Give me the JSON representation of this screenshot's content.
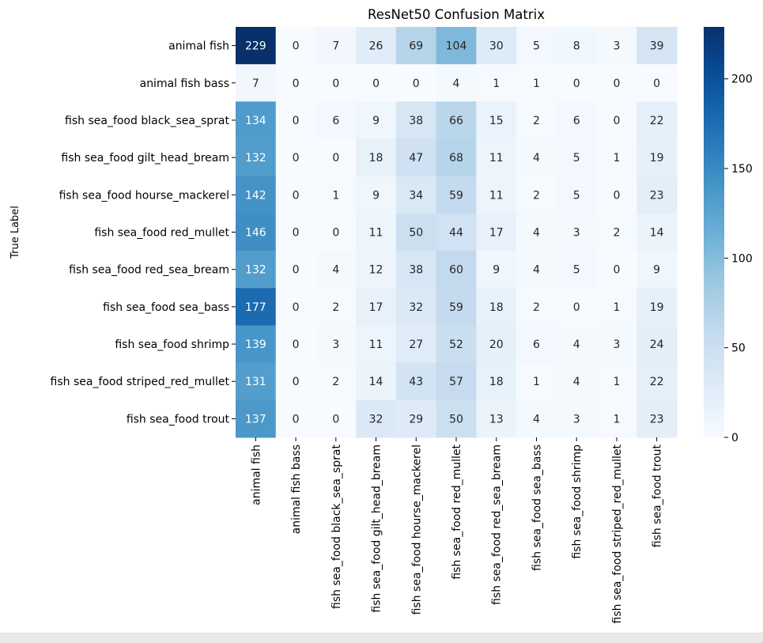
{
  "chart_data": {
    "type": "heatmap",
    "title": "ResNet50 Confusion Matrix",
    "ylabel": "True Label",
    "xlabel": "",
    "row_labels": [
      "animal fish",
      "animal fish bass",
      "fish sea_food black_sea_sprat",
      "fish sea_food gilt_head_bream",
      "fish sea_food hourse_mackerel",
      "fish sea_food red_mullet",
      "fish sea_food red_sea_bream",
      "fish sea_food sea_bass",
      "fish sea_food shrimp",
      "fish sea_food striped_red_mullet",
      "fish sea_food trout"
    ],
    "col_labels": [
      "animal fish",
      "animal fish bass",
      "fish sea_food black_sea_sprat",
      "fish sea_food gilt_head_bream",
      "fish sea_food hourse_mackerel",
      "fish sea_food red_mullet",
      "fish sea_food red_sea_bream",
      "fish sea_food sea_bass",
      "fish sea_food shrimp",
      "fish sea_food striped_red_mullet",
      "fish sea_food trout"
    ],
    "values": [
      [
        229,
        0,
        7,
        26,
        69,
        104,
        30,
        5,
        8,
        3,
        39
      ],
      [
        7,
        0,
        0,
        0,
        0,
        4,
        1,
        1,
        0,
        0,
        0
      ],
      [
        134,
        0,
        6,
        9,
        38,
        66,
        15,
        2,
        6,
        0,
        22
      ],
      [
        132,
        0,
        0,
        18,
        47,
        68,
        11,
        4,
        5,
        1,
        19
      ],
      [
        142,
        0,
        1,
        9,
        34,
        59,
        11,
        2,
        5,
        0,
        23
      ],
      [
        146,
        0,
        0,
        11,
        50,
        44,
        17,
        4,
        3,
        2,
        14
      ],
      [
        132,
        0,
        4,
        12,
        38,
        60,
        9,
        4,
        5,
        0,
        9
      ],
      [
        177,
        0,
        2,
        17,
        32,
        59,
        18,
        2,
        0,
        1,
        19
      ],
      [
        139,
        0,
        3,
        11,
        27,
        52,
        20,
        6,
        4,
        3,
        24
      ],
      [
        131,
        0,
        2,
        14,
        43,
        57,
        18,
        1,
        4,
        1,
        22
      ],
      [
        137,
        0,
        0,
        32,
        29,
        50,
        13,
        4,
        3,
        1,
        23
      ]
    ],
    "colorbar": {
      "min": 0,
      "max": 229,
      "ticks": [
        0,
        50,
        100,
        150,
        200
      ],
      "colormap": "Blues"
    }
  }
}
